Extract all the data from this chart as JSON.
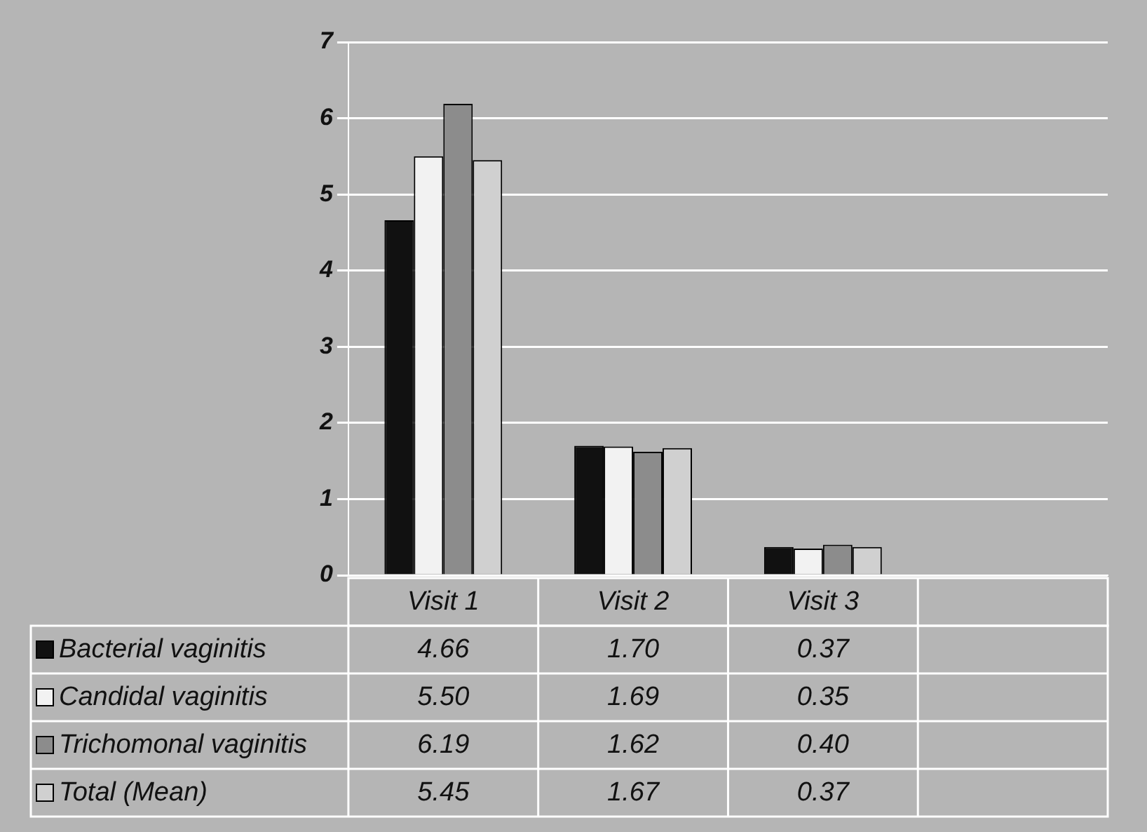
{
  "chart_data": {
    "type": "bar",
    "categories": [
      "Visit 1",
      "Visit 2",
      "Visit 3",
      null
    ],
    "series": [
      {
        "name": "Bacterial vaginitis",
        "color": "#111111",
        "values": [
          4.66,
          1.7,
          0.37,
          null
        ],
        "value_labels": [
          "4.66",
          "1.70",
          "0.37",
          null
        ]
      },
      {
        "name": "Candidal vaginitis",
        "color": "#f2f2f2",
        "values": [
          5.5,
          1.69,
          0.35,
          null
        ],
        "value_labels": [
          "5.50",
          "1.69",
          "0.35",
          null
        ]
      },
      {
        "name": "Trichomonal vaginitis",
        "color": "#8c8c8c",
        "values": [
          6.19,
          1.62,
          0.4,
          null
        ],
        "value_labels": [
          "6.19",
          "1.62",
          "0.40",
          null
        ]
      },
      {
        "name": "Total (Mean)",
        "color": "#d0d0d0",
        "values": [
          5.45,
          1.67,
          0.37,
          null
        ],
        "value_labels": [
          "5.45",
          "1.67",
          "0.37",
          null
        ]
      }
    ],
    "ylim": [
      0,
      7
    ],
    "yticks": [
      0,
      1,
      2,
      3,
      4,
      5,
      6,
      7
    ],
    "grid": "y",
    "legend": "bottom left"
  }
}
